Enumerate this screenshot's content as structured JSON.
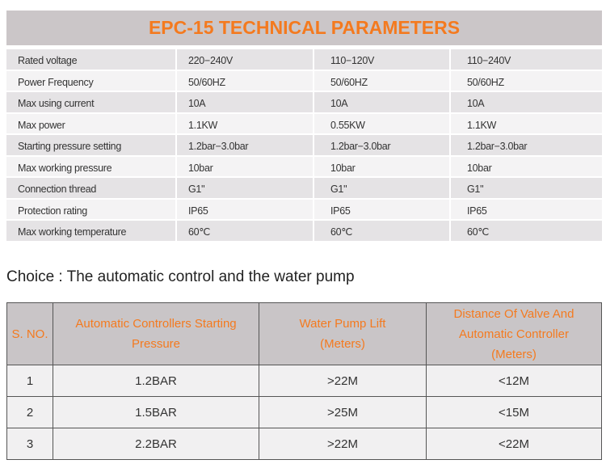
{
  "title": "EPC-15 TECHNICAL PARAMETERS",
  "spec_rows": [
    [
      "Rated voltage",
      "220−240V",
      "110−120V",
      "110−240V"
    ],
    [
      "Power Frequency",
      "50/60HZ",
      "50/60HZ",
      "50/60HZ"
    ],
    [
      "Max using current",
      "10A",
      "10A",
      "10A"
    ],
    [
      "Max power",
      "1.1KW",
      "0.55KW",
      "1.1KW"
    ],
    [
      "Starting pressure setting",
      "1.2bar−3.0bar",
      "1.2bar−3.0bar",
      "1.2bar−3.0bar"
    ],
    [
      "Max working pressure",
      "10bar",
      "10bar",
      "10bar"
    ],
    [
      "Connection thread",
      "G1\"",
      "G1\"",
      "G1\""
    ],
    [
      "Protection rating",
      "IP65",
      "IP65",
      "IP65"
    ],
    [
      "Max working temperature",
      "60℃",
      "60℃",
      "60℃"
    ]
  ],
  "choice_text": "Choice : The automatic control and the water pump",
  "choice_table": {
    "headers": [
      "S. NO.",
      "Automatic Controllers Starting Pressure",
      "Water Pump Lift (Meters)",
      "Distance Of Valve And Automatic Controller (Meters)"
    ],
    "rows": [
      [
        "1",
        "1.2BAR",
        ">22M",
        "<12M"
      ],
      [
        "2",
        "1.5BAR",
        ">25M",
        "<15M"
      ],
      [
        "3",
        "2.2BAR",
        ">22M",
        "<22M"
      ]
    ]
  },
  "colors": {
    "accent": "#f47a1f",
    "header_bg": "#cbc6c8"
  }
}
